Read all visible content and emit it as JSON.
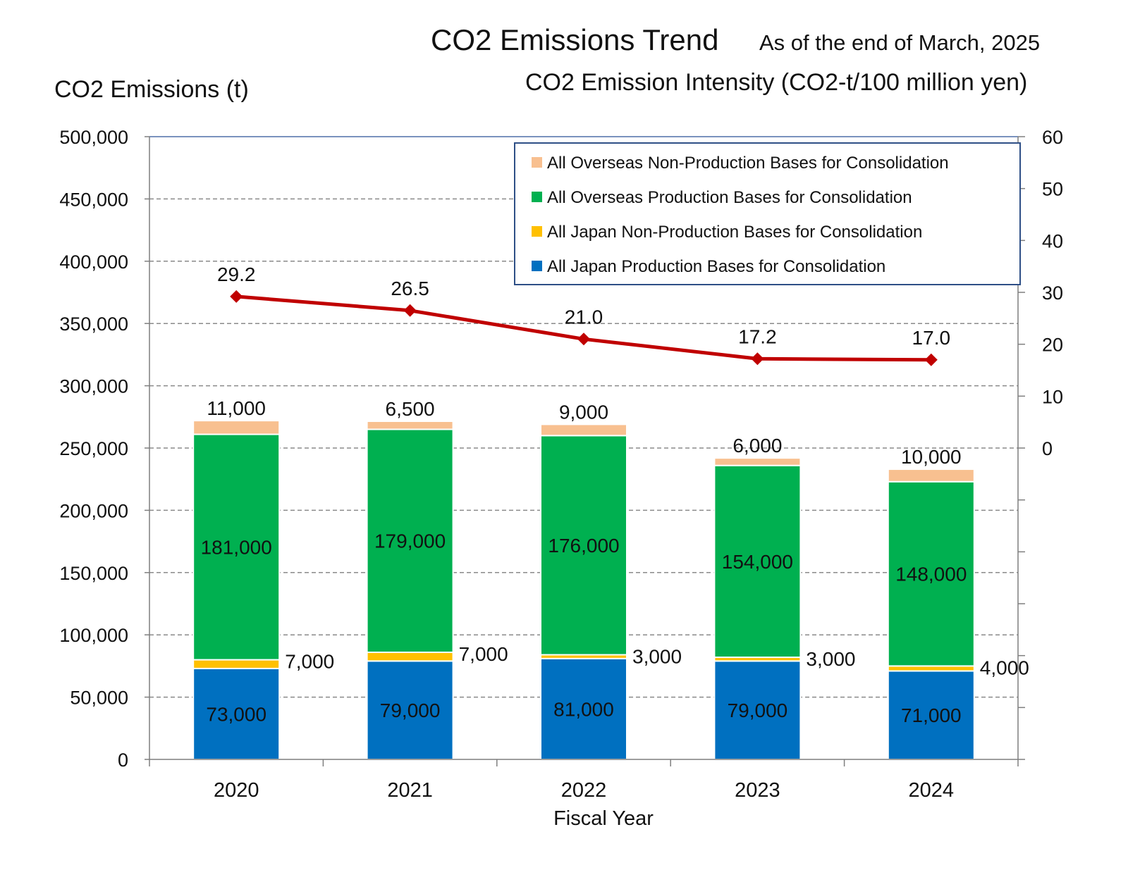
{
  "header": {
    "title": "CO2 Emissions Trend",
    "as_of": "As of the end of March, 2025",
    "left_axis_title": "CO2 Emissions (t)",
    "right_axis_title": "CO2 Emission Intensity (CO2-t/100 million yen)"
  },
  "chart_data": {
    "type": "bar",
    "stacked": true,
    "title": "CO2 Emissions Trend",
    "subtitle": "As of the end of March, 2025",
    "xlabel": "Fiscal Year",
    "ylabel": "CO2 Emissions (t)",
    "y2label": "CO2 Emission Intensity (CO2-t/100 million yen)",
    "categories": [
      "2020",
      "2021",
      "2022",
      "2023",
      "2024"
    ],
    "ylim": [
      0,
      500000
    ],
    "yticks": [
      0,
      50000,
      100000,
      150000,
      200000,
      250000,
      300000,
      350000,
      400000,
      450000,
      500000
    ],
    "ytick_labels": [
      "0",
      "50,000",
      "100,000",
      "150,000",
      "200,000",
      "250,000",
      "300,000",
      "350,000",
      "400,000",
      "450,000",
      "500,000"
    ],
    "y2lim": [
      -60,
      60
    ],
    "y2ticks": [
      0,
      10,
      20,
      30,
      40,
      50,
      60
    ],
    "y2tick_labels": [
      "0",
      "10",
      "20",
      "30",
      "40",
      "50",
      "60"
    ],
    "grid": true,
    "legend_position": "top-right",
    "series": [
      {
        "name": "All Japan Production Bases for Consolidation",
        "color": "#0070C0",
        "values": [
          73000,
          79000,
          81000,
          79000,
          71000
        ],
        "labels": [
          "73,000",
          "79,000",
          "81,000",
          "79,000",
          "71,000"
        ]
      },
      {
        "name": "All Japan Non-Production Bases for Consolidation",
        "color": "#FFC000",
        "values": [
          7000,
          7000,
          3000,
          3000,
          4000
        ],
        "labels": [
          "7,000",
          "7,000",
          "3,000",
          "3,000",
          "4,000"
        ]
      },
      {
        "name": "All Overseas Production Bases for Consolidation",
        "color": "#00B050",
        "values": [
          181000,
          179000,
          176000,
          154000,
          148000
        ],
        "labels": [
          "181,000",
          "179,000",
          "176,000",
          "154,000",
          "148,000"
        ]
      },
      {
        "name": "All Overseas Non-Production Bases for Consolidation",
        "color": "#F8C090",
        "values": [
          11000,
          6500,
          9000,
          6000,
          10000
        ],
        "labels": [
          "11,000",
          "6,500",
          "9,000",
          "6,000",
          "10,000"
        ]
      }
    ],
    "line_series": {
      "name": "CO2 Emission Intensity (CO2-t/100 million yen)",
      "axis": "right",
      "color": "#C00000",
      "values": [
        29.2,
        26.5,
        21.0,
        17.2,
        17.0
      ],
      "labels": [
        "29.2",
        "26.5",
        "21.0",
        "17.2",
        "17.0"
      ]
    },
    "legend_order": [
      3,
      2,
      1,
      0
    ]
  }
}
